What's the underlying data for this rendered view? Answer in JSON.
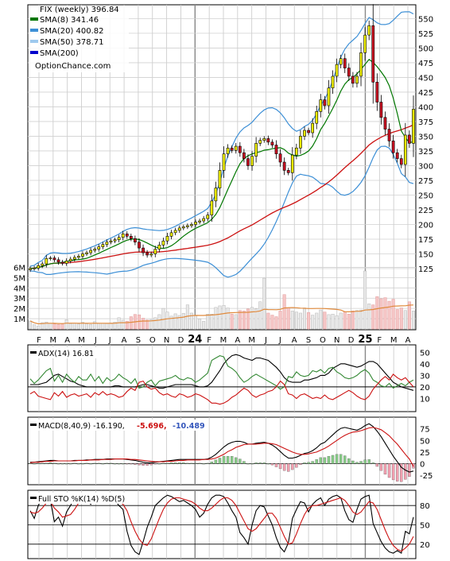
{
  "chart_data": [
    {
      "type": "candlestick",
      "panel": "price",
      "title": "FIX (weekly) 396.84",
      "ylim": [
        125,
        560
      ],
      "yticks": [
        550,
        525,
        500,
        475,
        450,
        425,
        400,
        375,
        350,
        325,
        300,
        275,
        250,
        225,
        200,
        175,
        150,
        125
      ],
      "legend": [
        {
          "label": "SMA(8) 341.46",
          "color": "#007700"
        },
        {
          "label": "SMA(20) 400.82",
          "color": "#3c8fd6"
        },
        {
          "label": "SMA(50) 378.71",
          "color": "#9ec9ee"
        },
        {
          "label": "SMA(200)",
          "color": "#0000cc"
        }
      ],
      "watermark": "OptionChance.com",
      "colors": {
        "up": "#f2f200",
        "down": "#cc1122",
        "sma8": "#007700",
        "sma20": "#3c8fd6",
        "sma50": "#cc1111",
        "bollinger": "#3c8fd6"
      },
      "x_labels": [
        "F",
        "M",
        "A",
        "M",
        "J",
        "J",
        "A",
        "S",
        "O",
        "N",
        "D",
        "24",
        "F",
        "M",
        "A",
        "M",
        "J",
        "J",
        "A",
        "S",
        "O",
        "N",
        "D",
        "25",
        "F",
        "M",
        "A"
      ],
      "close": [
        125,
        126,
        130,
        133,
        142,
        143,
        140,
        136,
        134,
        138,
        141,
        144,
        146,
        150,
        152,
        156,
        158,
        162,
        166,
        170,
        172,
        174,
        178,
        184,
        180,
        176,
        170,
        160,
        152,
        148,
        150,
        158,
        165,
        172,
        180,
        186,
        190,
        194,
        196,
        198,
        200,
        204,
        206,
        210,
        216,
        240,
        262,
        292,
        320,
        330,
        326,
        333,
        322,
        312,
        300,
        316,
        338,
        343,
        346,
        340,
        335,
        320,
        306,
        292,
        288,
        318,
        330,
        350,
        360,
        356,
        372,
        392,
        412,
        402,
        432,
        452,
        472,
        482,
        466,
        452,
        440,
        452,
        492,
        522,
        538,
        442,
        408,
        382,
        362,
        342,
        322,
        312,
        302,
        352,
        338,
        396
      ],
      "volume_axis": {
        "ylim": [
          0,
          6500000
        ],
        "ticks": [
          "6M",
          "5M",
          "4M",
          "3M",
          "2M",
          "1M"
        ]
      },
      "volume_up": [
        780000,
        420000,
        300000,
        620000,
        680000,
        550000,
        500000,
        440000,
        470000,
        900000,
        520000,
        560000,
        480000,
        650000,
        500000,
        450000,
        720000,
        540000,
        560000,
        520000,
        580000,
        680000,
        1100000,
        850000,
        760000,
        1200000,
        1420000,
        1380000,
        1050000,
        880000,
        920000,
        1100000,
        1400000,
        2000000,
        1650000,
        1250000,
        1480000,
        1320000,
        1520000,
        2350000,
        1550000,
        1300000,
        980000,
        750000,
        1450000,
        1450000,
        2100000,
        2250000,
        2300000,
        2050000,
        1450000,
        1400000,
        1800000,
        1750000,
        1950000,
        2100000,
        1950000,
        2650000,
        4950000,
        1550000,
        1350000,
        1200000,
        1750000,
        3350000,
        2050000,
        1750000,
        1650000,
        1550000,
        2050000,
        1600000,
        1350000,
        1550000,
        1850000,
        1650000,
        1400000,
        1450000,
        1300000,
        1550000,
        1650000,
        1450000,
        1750000,
        1800000,
        1850000,
        5650000,
        2450000,
        2350000,
        3150000,
        2950000,
        3050000,
        2700000,
        2900000,
        1900000,
        2050000,
        1800000,
        2650000,
        1750000
      ],
      "volume_ma_color": "#e08a3c"
    },
    {
      "type": "line",
      "panel": "adx",
      "legend": "ADX(14) 16.81",
      "ylim": [
        0,
        55
      ],
      "yticks": [
        50,
        40,
        30,
        20,
        10
      ],
      "series": [
        {
          "name": "ADX",
          "color": "#000000",
          "values": [
            22,
            22,
            22,
            23,
            24,
            27,
            30,
            31,
            29,
            27,
            25,
            24,
            22,
            21,
            20,
            20,
            20,
            20,
            20,
            20,
            20,
            21,
            21,
            20,
            20,
            20,
            20,
            21,
            22,
            22,
            21,
            20,
            19,
            19,
            20,
            21,
            22,
            22,
            22,
            22,
            22,
            21,
            20,
            20,
            21,
            24,
            29,
            34,
            40,
            44,
            47,
            48,
            47,
            45,
            44,
            43,
            45,
            45,
            44,
            43,
            40,
            37,
            33,
            28,
            25,
            24,
            24,
            24,
            26,
            26,
            27,
            28,
            30,
            30,
            32,
            36,
            38,
            40,
            40,
            39,
            38,
            37,
            38,
            40,
            42,
            42,
            40,
            36,
            32,
            28,
            24,
            22,
            20,
            19,
            18,
            17
          ]
        },
        {
          "name": "DI+",
          "color": "#338833",
          "values": [
            27,
            23,
            26,
            30,
            34,
            36,
            25,
            30,
            24,
            31,
            27,
            24,
            29,
            26,
            26,
            31,
            25,
            29,
            23,
            28,
            25,
            27,
            31,
            28,
            26,
            23,
            27,
            19,
            20,
            24,
            26,
            21,
            25,
            26,
            27,
            28,
            30,
            27,
            26,
            28,
            27,
            24,
            26,
            29,
            32,
            43,
            45,
            47,
            46,
            38,
            36,
            33,
            28,
            24,
            26,
            29,
            31,
            29,
            27,
            25,
            23,
            21,
            18,
            20,
            29,
            28,
            33,
            30,
            29,
            30,
            34,
            33,
            35,
            32,
            36,
            37,
            33,
            31,
            28,
            27,
            28,
            30,
            33,
            35,
            32,
            26,
            24,
            21,
            20,
            23,
            19,
            21,
            23,
            21,
            24,
            26
          ]
        },
        {
          "name": "DI-",
          "color": "#cc1111",
          "values": [
            14,
            16,
            12,
            11,
            10,
            9,
            15,
            12,
            16,
            11,
            13,
            14,
            12,
            13,
            14,
            11,
            15,
            13,
            16,
            13,
            14,
            13,
            11,
            12,
            16,
            19,
            17,
            24,
            25,
            20,
            18,
            19,
            15,
            13,
            14,
            12,
            11,
            14,
            13,
            11,
            12,
            14,
            13,
            11,
            9,
            6,
            6,
            5,
            6,
            8,
            11,
            13,
            16,
            19,
            17,
            13,
            11,
            13,
            14,
            16,
            17,
            20,
            25,
            22,
            14,
            13,
            10,
            13,
            14,
            12,
            10,
            11,
            10,
            13,
            10,
            9,
            11,
            13,
            15,
            17,
            15,
            12,
            10,
            9,
            12,
            18,
            22,
            26,
            29,
            26,
            31,
            28,
            26,
            28,
            24,
            20
          ]
        }
      ]
    },
    {
      "type": "line+bar",
      "panel": "macd",
      "legend_label": "MACD(8,40,9) -16.190,",
      "legend_signal": "-5.696,",
      "legend_hist": "-10.489",
      "ylim": [
        -42,
        95
      ],
      "yticks": [
        75,
        50,
        25,
        0,
        -25
      ],
      "series": [
        {
          "name": "MACD",
          "color": "#000000",
          "values": [
            3,
            3,
            4,
            5,
            6,
            7,
            7,
            6,
            6,
            6,
            6,
            7,
            7,
            7,
            8,
            8,
            9,
            9,
            9,
            10,
            10,
            10,
            10,
            10,
            9,
            8,
            7,
            5,
            3,
            2,
            2,
            3,
            4,
            5,
            6,
            7,
            8,
            9,
            9,
            9,
            9,
            9,
            9,
            9,
            10,
            14,
            20,
            28,
            36,
            42,
            46,
            48,
            48,
            46,
            42,
            42,
            44,
            45,
            46,
            44,
            40,
            34,
            26,
            18,
            12,
            12,
            14,
            18,
            22,
            24,
            28,
            34,
            42,
            46,
            54,
            62,
            70,
            76,
            78,
            76,
            74,
            72,
            76,
            82,
            86,
            80,
            70,
            58,
            44,
            30,
            16,
            4,
            -8,
            -14,
            -18,
            -16
          ]
        },
        {
          "name": "Signal",
          "color": "#cc1111",
          "values": [
            2,
            3,
            3,
            4,
            5,
            5,
            6,
            6,
            6,
            6,
            6,
            6,
            7,
            7,
            7,
            8,
            8,
            8,
            9,
            9,
            9,
            10,
            10,
            10,
            10,
            9,
            9,
            8,
            7,
            6,
            5,
            4,
            4,
            4,
            5,
            5,
            6,
            7,
            7,
            8,
            8,
            8,
            8,
            9,
            9,
            10,
            12,
            16,
            20,
            26,
            30,
            35,
            38,
            41,
            42,
            42,
            42,
            43,
            44,
            44,
            43,
            41,
            37,
            33,
            29,
            25,
            22,
            20,
            20,
            21,
            23,
            25,
            29,
            33,
            38,
            44,
            50,
            56,
            61,
            65,
            68,
            69,
            71,
            74,
            77,
            78,
            76,
            73,
            67,
            60,
            51,
            42,
            31,
            20,
            10,
            -6
          ]
        }
      ],
      "histogram_colors": {
        "positive": "#88cc88",
        "negative": "#f2a0b0"
      }
    },
    {
      "type": "line",
      "panel": "stochastic",
      "legend": "Full STO %K(14) %D(5)",
      "ylim": [
        0,
        100
      ],
      "yticks": [
        80,
        50,
        20
      ],
      "bands": [
        80,
        50,
        20
      ],
      "series": [
        {
          "name": "%K",
          "color": "#000000",
          "values": [
            72,
            60,
            80,
            92,
            96,
            88,
            55,
            62,
            48,
            70,
            80,
            92,
            95,
            86,
            90,
            82,
            94,
            84,
            90,
            86,
            92,
            88,
            80,
            74,
            40,
            18,
            8,
            4,
            24,
            46,
            62,
            80,
            86,
            92,
            96,
            94,
            90,
            86,
            88,
            84,
            80,
            74,
            62,
            68,
            82,
            92,
            96,
            96,
            94,
            84,
            72,
            62,
            38,
            30,
            20,
            50,
            72,
            80,
            78,
            64,
            50,
            30,
            15,
            8,
            22,
            60,
            74,
            86,
            84,
            70,
            82,
            88,
            92,
            80,
            90,
            94,
            96,
            92,
            72,
            58,
            54,
            74,
            90,
            94,
            96,
            52,
            38,
            24,
            14,
            8,
            6,
            10,
            6,
            40,
            36,
            62
          ]
        },
        {
          "name": "%D",
          "color": "#cc1111",
          "values": [
            70,
            68,
            70,
            76,
            84,
            86,
            76,
            70,
            62,
            64,
            66,
            74,
            84,
            88,
            90,
            88,
            89,
            88,
            88,
            87,
            88,
            88,
            86,
            82,
            72,
            55,
            40,
            28,
            20,
            18,
            28,
            44,
            60,
            74,
            84,
            90,
            92,
            92,
            90,
            88,
            86,
            82,
            76,
            72,
            72,
            76,
            82,
            88,
            92,
            92,
            88,
            80,
            68,
            56,
            44,
            40,
            44,
            52,
            60,
            68,
            68,
            60,
            46,
            32,
            20,
            22,
            36,
            52,
            66,
            76,
            80,
            80,
            82,
            84,
            86,
            88,
            90,
            92,
            88,
            80,
            70,
            66,
            70,
            78,
            86,
            84,
            74,
            58,
            42,
            28,
            18,
            12,
            9,
            14,
            20,
            32
          ]
        }
      ]
    }
  ]
}
